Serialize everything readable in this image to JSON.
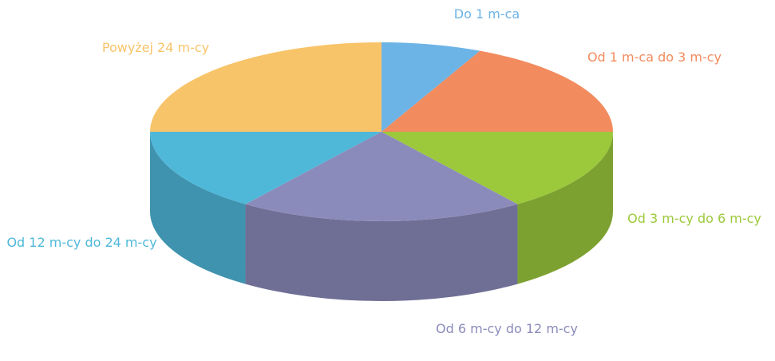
{
  "chart_data": {
    "type": "pie",
    "categories": [
      "Do 1 m-ca",
      "Od 1 m-ca do 3 m-cy",
      "Od 3 m-cy do 6 m-cy",
      "Od 6 m-cy do 12 m-cy",
      "Od 12 m-cy do 24 m-cy",
      "Powyżej 24 m-cy"
    ],
    "values": [
      7,
      18,
      15,
      20,
      15,
      25
    ],
    "colors": [
      "#6db4e6",
      "#f28b5e",
      "#9cc93c",
      "#8b8bbb",
      "#4fb8d9",
      "#f8c46a"
    ]
  }
}
